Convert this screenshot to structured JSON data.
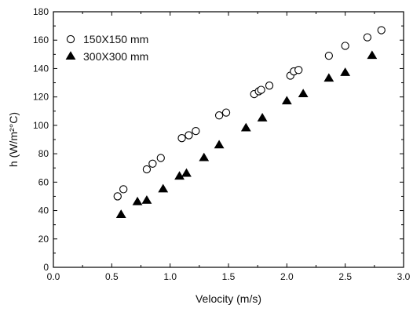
{
  "chart_data": {
    "type": "scatter",
    "xlabel": "Velocity (m/s)",
    "ylabel": "h (W/m²°C)",
    "xlim": [
      0.0,
      3.0
    ],
    "ylim": [
      0,
      180
    ],
    "x_ticks": [
      "0.0",
      "0.5",
      "1.0",
      "1.5",
      "2.0",
      "2.5",
      "3.0"
    ],
    "y_ticks": [
      "0",
      "20",
      "40",
      "60",
      "80",
      "100",
      "120",
      "140",
      "160",
      "180"
    ],
    "grid": false,
    "legend_position": "top-left",
    "series": [
      {
        "name": "150X150 mm",
        "marker": "open-circle",
        "color": "#000000",
        "x": [
          0.55,
          0.6,
          0.8,
          0.85,
          0.92,
          1.1,
          1.16,
          1.22,
          1.42,
          1.48,
          1.72,
          1.76,
          1.78,
          1.85,
          2.03,
          2.06,
          2.1,
          2.36,
          2.5,
          2.69,
          2.81
        ],
        "y": [
          50,
          55,
          69,
          73,
          77,
          91,
          93,
          96,
          107,
          109,
          122,
          124,
          125,
          128,
          135,
          138,
          139,
          149,
          156,
          162,
          167
        ]
      },
      {
        "name": "300X300 mm",
        "marker": "filled-triangle",
        "color": "#000000",
        "x": [
          0.58,
          0.72,
          0.8,
          0.94,
          1.08,
          1.14,
          1.29,
          1.42,
          1.65,
          1.79,
          2.0,
          2.14,
          2.36,
          2.5,
          2.73
        ],
        "y": [
          37,
          46,
          47,
          55,
          64,
          66,
          77,
          86,
          98,
          105,
          117,
          122,
          133,
          137,
          149
        ]
      }
    ]
  }
}
